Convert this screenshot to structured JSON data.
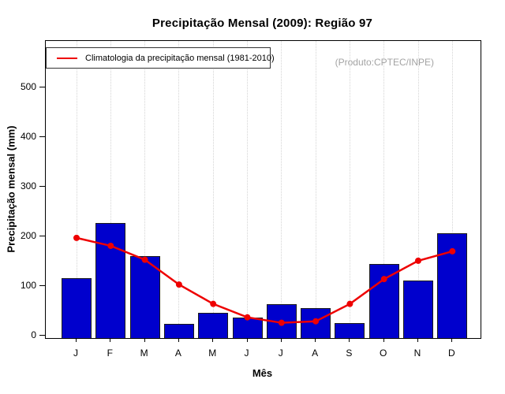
{
  "page": {
    "title": "Precipitação Mensal (2009): Região 97",
    "annotation": "(Produto:CPTEC/INPE)"
  },
  "legend": {
    "label": "Climatologia da precipitação mensal (1981-2010)",
    "marker": "red-line"
  },
  "colors": {
    "bar_fill": "#0000CD",
    "bar_border": "#1A1A1A",
    "climatology_line": "#EE0000",
    "gridline": "#D4D4D4",
    "annotation_text": "#A3A3A3",
    "axis": "#000000"
  },
  "chart_data": {
    "type": "bar",
    "title": "Precipitação Mensal (2009): Região 97",
    "xlabel": "Mês",
    "ylabel": "Precipitação mensal (mm)",
    "categories": [
      "J",
      "F",
      "M",
      "A",
      "M",
      "J",
      "J",
      "A",
      "S",
      "O",
      "N",
      "D"
    ],
    "series": [
      {
        "name": "Precipitação mensal (2009)",
        "type": "bar",
        "values": [
          116,
          227,
          161,
          24,
          46,
          37,
          63,
          55,
          26,
          144,
          111,
          206
        ]
      },
      {
        "name": "Climatologia da precipitação mensal (1981-2010)",
        "type": "line",
        "values": [
          197,
          181,
          153,
          103,
          64,
          37,
          26,
          29,
          64,
          114,
          151,
          170
        ]
      }
    ],
    "yticks": [
      0,
      100,
      200,
      300,
      400,
      500
    ],
    "ylim": [
      0,
      590
    ],
    "grid": "vertical-dotted",
    "legend_position": "top-left"
  }
}
